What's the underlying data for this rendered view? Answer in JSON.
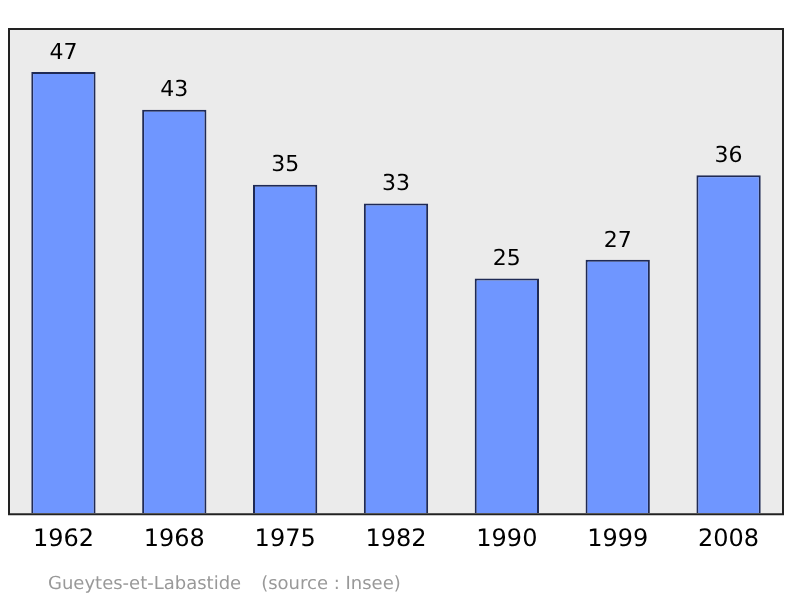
{
  "chart_data": {
    "type": "bar",
    "categories": [
      "1962",
      "1968",
      "1975",
      "1982",
      "1990",
      "1999",
      "2008"
    ],
    "values": [
      47,
      43,
      35,
      33,
      25,
      27,
      36
    ],
    "color": "#6f96ff",
    "data_labels": true,
    "grid": false,
    "legend": false,
    "annotations": [
      "Gueytes-et-Labastide",
      "(source : Insee)"
    ]
  }
}
